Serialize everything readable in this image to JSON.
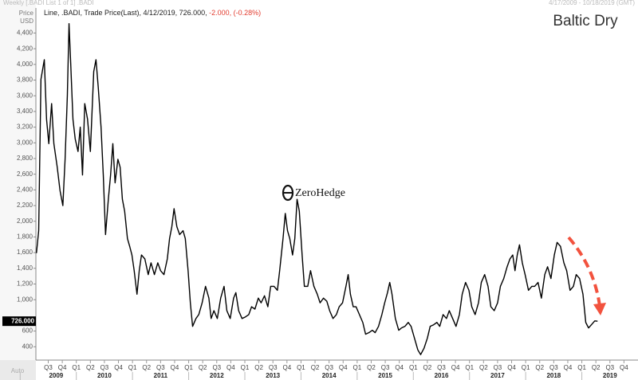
{
  "chart_data": {
    "type": "line",
    "title": "Baltic Dry",
    "header_left": "Weekly [.BADI List 1 of 1] .BADI",
    "header_right": "4/17/2009 - 10/18/2019 (GMT)",
    "legend": {
      "text": "Line, .BADI, Trade Price(Last), 4/12/2019, 726.000,",
      "change": "-2.000, (-0.28%)"
    },
    "y_axis_label": [
      "Price",
      "USD"
    ],
    "auto_label": "Auto",
    "watermark": "ZeroHedge",
    "last_price_label": "726.000",
    "color": "#000000",
    "xlim": [
      2009.28,
      2020.0
    ],
    "ylim": [
      230,
      4740
    ],
    "yticks": [
      400,
      600,
      {
        "value": 1000,
        "label": "1,000"
      },
      {
        "value": 1200,
        "label": "1,200"
      },
      {
        "value": 1400,
        "label": "1,400"
      },
      {
        "value": 1600,
        "label": "1,600"
      },
      {
        "value": 1800,
        "label": "1,800"
      },
      {
        "value": 2000,
        "label": "2,000"
      },
      {
        "value": 2200,
        "label": "2,200"
      },
      {
        "value": 2400,
        "label": "2,400"
      },
      {
        "value": 2600,
        "label": "2,600"
      },
      {
        "value": 2800,
        "label": "2,800"
      },
      {
        "value": 3000,
        "label": "3,000"
      },
      {
        "value": 3200,
        "label": "3,200"
      },
      {
        "value": 3400,
        "label": "3,400"
      },
      {
        "value": 3600,
        "label": "3,600"
      },
      {
        "value": 3800,
        "label": "3,800"
      },
      {
        "value": 4000,
        "label": "4,000"
      },
      {
        "value": 4200,
        "label": "4,200"
      },
      {
        "value": 4400,
        "label": "4,400"
      }
    ],
    "xticks": [
      {
        "value": 2009.5,
        "label": "Q3"
      },
      {
        "value": 2009.75,
        "label": "Q4"
      },
      {
        "value": 2010.0,
        "label": "Q1"
      },
      {
        "value": 2010.25,
        "label": "Q2"
      },
      {
        "value": 2010.5,
        "label": "Q3"
      },
      {
        "value": 2010.75,
        "label": "Q4"
      },
      {
        "value": 2011.0,
        "label": "Q1"
      },
      {
        "value": 2011.25,
        "label": "Q2"
      },
      {
        "value": 2011.5,
        "label": "Q3"
      },
      {
        "value": 2011.75,
        "label": "Q4"
      },
      {
        "value": 2012.0,
        "label": "Q1"
      },
      {
        "value": 2012.25,
        "label": "Q2"
      },
      {
        "value": 2012.5,
        "label": "Q3"
      },
      {
        "value": 2012.75,
        "label": "Q4"
      },
      {
        "value": 2013.0,
        "label": "Q1"
      },
      {
        "value": 2013.25,
        "label": "Q2"
      },
      {
        "value": 2013.5,
        "label": "Q3"
      },
      {
        "value": 2013.75,
        "label": "Q4"
      },
      {
        "value": 2014.0,
        "label": "Q1"
      },
      {
        "value": 2014.25,
        "label": "Q2"
      },
      {
        "value": 2014.5,
        "label": "Q3"
      },
      {
        "value": 2014.75,
        "label": "Q4"
      },
      {
        "value": 2015.0,
        "label": "Q1"
      },
      {
        "value": 2015.25,
        "label": "Q2"
      },
      {
        "value": 2015.5,
        "label": "Q3"
      },
      {
        "value": 2015.75,
        "label": "Q4"
      },
      {
        "value": 2016.0,
        "label": "Q1"
      },
      {
        "value": 2016.25,
        "label": "Q2"
      },
      {
        "value": 2016.5,
        "label": "Q3"
      },
      {
        "value": 2016.75,
        "label": "Q4"
      },
      {
        "value": 2017.0,
        "label": "Q1"
      },
      {
        "value": 2017.25,
        "label": "Q2"
      },
      {
        "value": 2017.5,
        "label": "Q3"
      },
      {
        "value": 2017.75,
        "label": "Q4"
      },
      {
        "value": 2018.0,
        "label": "Q1"
      },
      {
        "value": 2018.25,
        "label": "Q2"
      },
      {
        "value": 2018.5,
        "label": "Q3"
      },
      {
        "value": 2018.75,
        "label": "Q4"
      },
      {
        "value": 2019.0,
        "label": "Q1"
      },
      {
        "value": 2019.25,
        "label": "Q2"
      },
      {
        "value": 2019.5,
        "label": "Q3"
      },
      {
        "value": 2019.75,
        "label": "Q4"
      }
    ],
    "year_ticks": [
      2009,
      2010,
      2011,
      2012,
      2013,
      2014,
      2015,
      2016,
      2017,
      2018,
      2019
    ],
    "x": [
      2009.29,
      2009.33,
      2009.37,
      2009.43,
      2009.47,
      2009.51,
      2009.56,
      2009.6,
      2009.66,
      2009.71,
      2009.76,
      2009.8,
      2009.84,
      2009.87,
      2009.9,
      2009.94,
      2009.98,
      2010.03,
      2010.07,
      2010.11,
      2010.15,
      2010.2,
      2010.25,
      2010.31,
      2010.35,
      2010.39,
      2010.44,
      2010.48,
      2010.52,
      2010.57,
      2010.61,
      2010.65,
      2010.69,
      2010.74,
      2010.78,
      2010.82,
      2010.86,
      2010.91,
      2010.95,
      2010.99,
      2011.03,
      2011.08,
      2011.12,
      2011.16,
      2011.22,
      2011.28,
      2011.33,
      2011.39,
      2011.45,
      2011.5,
      2011.56,
      2011.62,
      2011.66,
      2011.7,
      2011.74,
      2011.79,
      2011.84,
      2011.9,
      2011.94,
      2011.99,
      2012.03,
      2012.07,
      2012.13,
      2012.18,
      2012.24,
      2012.3,
      2012.36,
      2012.4,
      2012.45,
      2012.51,
      2012.57,
      2012.63,
      2012.68,
      2012.74,
      2012.8,
      2012.84,
      2012.89,
      2012.95,
      2013.01,
      2013.07,
      2013.12,
      2013.18,
      2013.24,
      2013.29,
      2013.35,
      2013.41,
      2013.46,
      2013.52,
      2013.58,
      2013.62,
      2013.68,
      2013.72,
      2013.76,
      2013.8,
      2013.85,
      2013.89,
      2013.93,
      2013.97,
      2014.02,
      2014.06,
      2014.12,
      2014.17,
      2014.23,
      2014.29,
      2014.34,
      2014.4,
      2014.46,
      2014.51,
      2014.57,
      2014.63,
      2014.68,
      2014.74,
      2014.8,
      2014.84,
      2014.88,
      2014.93,
      2014.98,
      2015.04,
      2015.1,
      2015.15,
      2015.21,
      2015.27,
      2015.32,
      2015.38,
      2015.44,
      2015.49,
      2015.54,
      2015.58,
      2015.62,
      2015.68,
      2015.74,
      2015.79,
      2015.85,
      2015.91,
      2015.96,
      2016.02,
      2016.08,
      2016.13,
      2016.19,
      2016.25,
      2016.3,
      2016.36,
      2016.42,
      2016.47,
      2016.53,
      2016.59,
      2016.64,
      2016.7,
      2016.76,
      2016.82,
      2016.87,
      2016.93,
      2016.99,
      2017.04,
      2017.1,
      2017.16,
      2017.21,
      2017.27,
      2017.33,
      2017.38,
      2017.44,
      2017.5,
      2017.55,
      2017.61,
      2017.67,
      2017.72,
      2017.77,
      2017.81,
      2017.85,
      2017.89,
      2017.94,
      2017.99,
      2018.05,
      2018.11,
      2018.16,
      2018.22,
      2018.28,
      2018.34,
      2018.39,
      2018.45,
      2018.51,
      2018.56,
      2018.62,
      2018.68,
      2018.73,
      2018.79,
      2018.85,
      2018.9,
      2018.96,
      2019.02,
      2019.07,
      2019.12,
      2019.17,
      2019.23,
      2019.28
    ],
    "values": [
      1594,
      1880,
      3810,
      4060,
      3300,
      2990,
      3500,
      2990,
      2690,
      2390,
      2200,
      2790,
      3600,
      4520,
      4010,
      3300,
      3050,
      2890,
      3200,
      2590,
      3500,
      3300,
      2890,
      3910,
      4060,
      3710,
      3200,
      2590,
      1830,
      2280,
      2590,
      2990,
      2490,
      2790,
      2690,
      2280,
      2130,
      1780,
      1680,
      1570,
      1370,
      1070,
      1370,
      1570,
      1520,
      1320,
      1470,
      1320,
      1470,
      1370,
      1320,
      1520,
      1780,
      1930,
      2160,
      1930,
      1830,
      1880,
      1780,
      1370,
      960,
      660,
      760,
      810,
      960,
      1170,
      1020,
      760,
      860,
      760,
      1020,
      1170,
      860,
      760,
      1020,
      1090,
      860,
      760,
      780,
      810,
      910,
      880,
      1020,
      960,
      1050,
      910,
      1170,
      1170,
      1120,
      1370,
      1780,
      2100,
      1880,
      1780,
      1570,
      1780,
      2280,
      2130,
      1570,
      1170,
      1170,
      1370,
      1170,
      1070,
      960,
      1020,
      980,
      860,
      760,
      810,
      910,
      960,
      1170,
      1320,
      1070,
      910,
      910,
      810,
      710,
      560,
      580,
      610,
      580,
      660,
      810,
      960,
      1090,
      1220,
      1070,
      760,
      610,
      640,
      660,
      710,
      660,
      510,
      360,
      300,
      380,
      510,
      660,
      680,
      710,
      660,
      810,
      760,
      860,
      760,
      660,
      810,
      1070,
      1220,
      1120,
      910,
      810,
      960,
      1220,
      1320,
      1170,
      910,
      860,
      960,
      1170,
      1270,
      1420,
      1520,
      1570,
      1370,
      1570,
      1700,
      1470,
      1320,
      1120,
      1170,
      1170,
      1220,
      1020,
      1320,
      1420,
      1270,
      1570,
      1730,
      1680,
      1470,
      1370,
      1120,
      1170,
      1320,
      1270,
      1070,
      710,
      640,
      680,
      730,
      726
    ]
  }
}
